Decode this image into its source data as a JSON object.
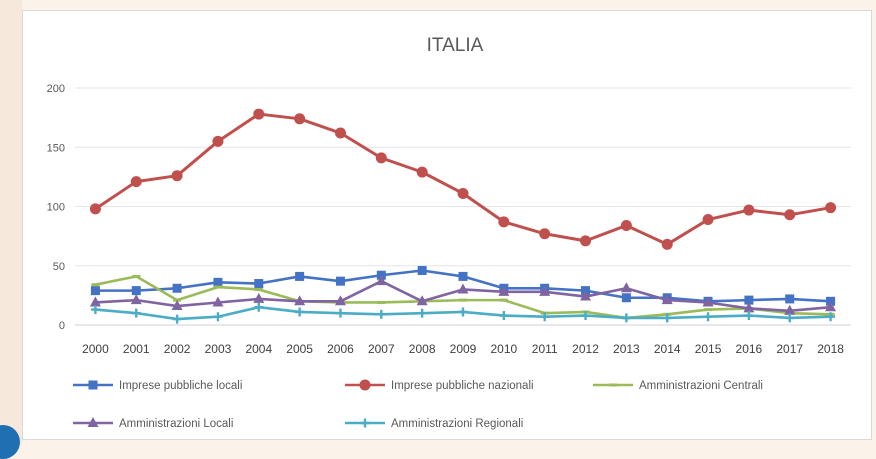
{
  "chart_data": {
    "type": "line",
    "title": "ITALIA",
    "xlabel": "",
    "ylabel": "",
    "ylim": [
      0,
      200
    ],
    "yticks": [
      0,
      50,
      100,
      150,
      200
    ],
    "grid": true,
    "legend_position": "bottom",
    "categories": [
      "2000",
      "2001",
      "2002",
      "2003",
      "2004",
      "2005",
      "2006",
      "2007",
      "2008",
      "2009",
      "2010",
      "2011",
      "2012",
      "2013",
      "2014",
      "2015",
      "2016",
      "2017",
      "2018"
    ],
    "series": [
      {
        "name": "Imprese pubbliche locali",
        "color": "#4472c4",
        "marker": "square",
        "values": [
          29,
          29,
          31,
          36,
          35,
          41,
          37,
          42,
          46,
          41,
          31,
          31,
          29,
          23,
          23,
          20,
          21,
          22,
          20
        ]
      },
      {
        "name": "Imprese pubbliche nazionali",
        "color": "#c0504d",
        "marker": "circle",
        "values": [
          98,
          121,
          126,
          155,
          178,
          174,
          162,
          141,
          129,
          111,
          87,
          77,
          71,
          84,
          68,
          89,
          97,
          93,
          99
        ]
      },
      {
        "name": "Amministrazioni Centrali",
        "color": "#9bbb59",
        "marker": "dash",
        "values": [
          34,
          41,
          21,
          32,
          30,
          20,
          19,
          19,
          20,
          21,
          21,
          10,
          11,
          6,
          9,
          13,
          14,
          10,
          9
        ]
      },
      {
        "name": "Amministrazioni Locali",
        "color": "#8064a2",
        "marker": "triangle",
        "values": [
          19,
          21,
          16,
          19,
          22,
          20,
          20,
          37,
          20,
          30,
          28,
          28,
          24,
          31,
          21,
          19,
          14,
          12,
          15
        ]
      },
      {
        "name": "Amministrazioni Regionali",
        "color": "#4bacc6",
        "marker": "cross",
        "values": [
          13,
          10,
          5,
          7,
          15,
          11,
          10,
          9,
          10,
          11,
          8,
          7,
          8,
          6,
          6,
          7,
          8,
          6,
          7
        ]
      }
    ]
  }
}
